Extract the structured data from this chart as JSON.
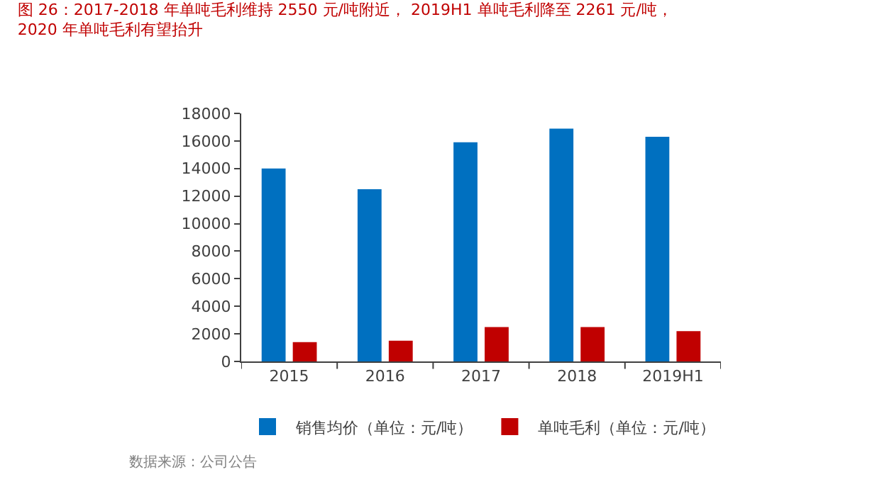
{
  "chart_data": {
    "type": "bar",
    "title": "图 26：2017-2018 年单吨毛利维持 2550 元/吨附近， 2019H1 单吨毛利降至 2261 元/吨，\n2020 年单吨毛利有望抬升",
    "categories": [
      "2015",
      "2016",
      "2017",
      "2018",
      "2019H1"
    ],
    "series": [
      {
        "name": "销售均价（单位：元/吨）",
        "color": "#0070c0",
        "values": [
          14000,
          12500,
          15900,
          16900,
          16300
        ]
      },
      {
        "name": "单吨毛利（单位：元/吨）",
        "color": "#c00000",
        "values": [
          1400,
          1500,
          2500,
          2500,
          2200
        ]
      }
    ],
    "ylim": [
      0,
      18000
    ],
    "yticks": [
      0,
      2000,
      4000,
      6000,
      8000,
      10000,
      12000,
      14000,
      16000,
      18000
    ],
    "legend": "bottom",
    "annotations": [
      "数据来源：公司公告"
    ]
  }
}
